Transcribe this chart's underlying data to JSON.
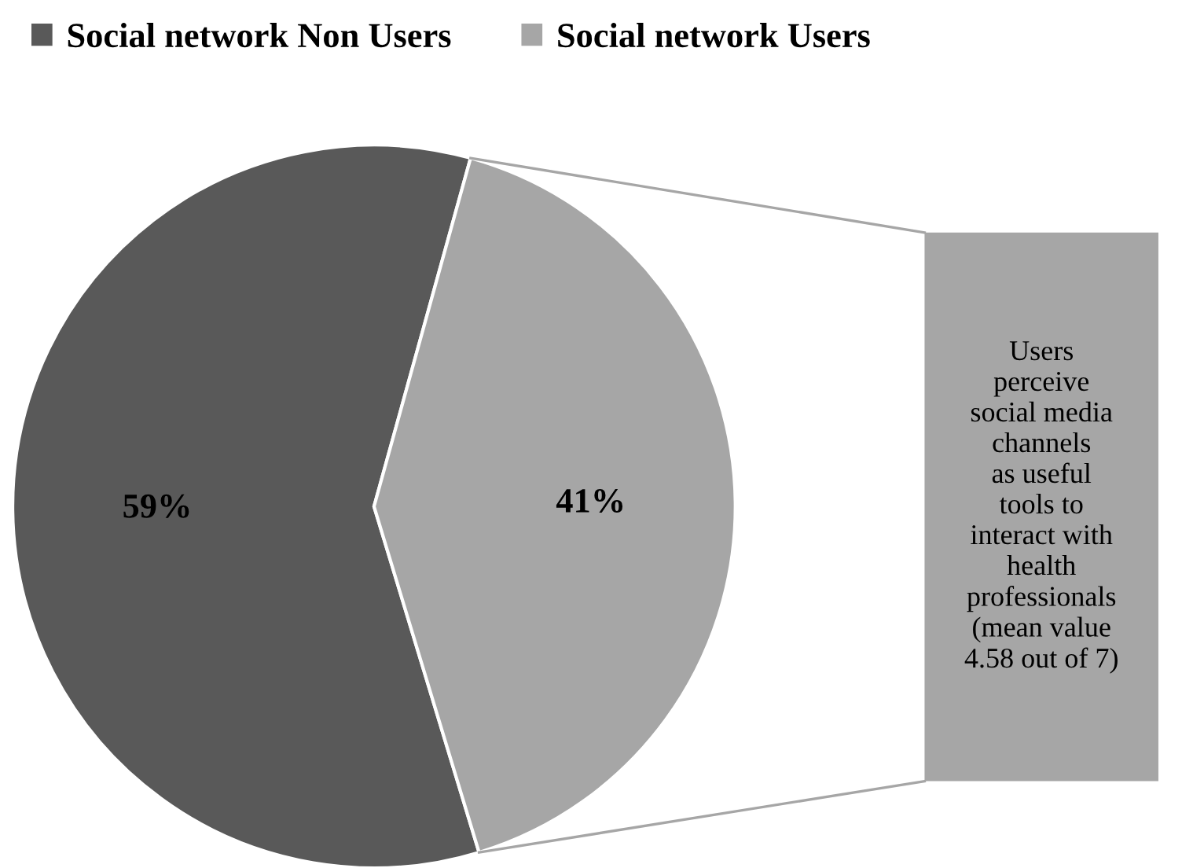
{
  "chart_data": {
    "type": "pie",
    "categories": [
      "Social network Non Users",
      "Social network Users"
    ],
    "values": [
      59,
      41
    ],
    "colors": [
      "#595959",
      "#a6a6a6"
    ],
    "value_labels": [
      "59%",
      "41%"
    ],
    "legend": "top",
    "annotations": [
      "Users\nperceive\nsocial media\nchannels\nas useful\ntools to\ninteract with\nhealth\nprofessionals\n(mean value\n4.58 out of 7)"
    ]
  }
}
